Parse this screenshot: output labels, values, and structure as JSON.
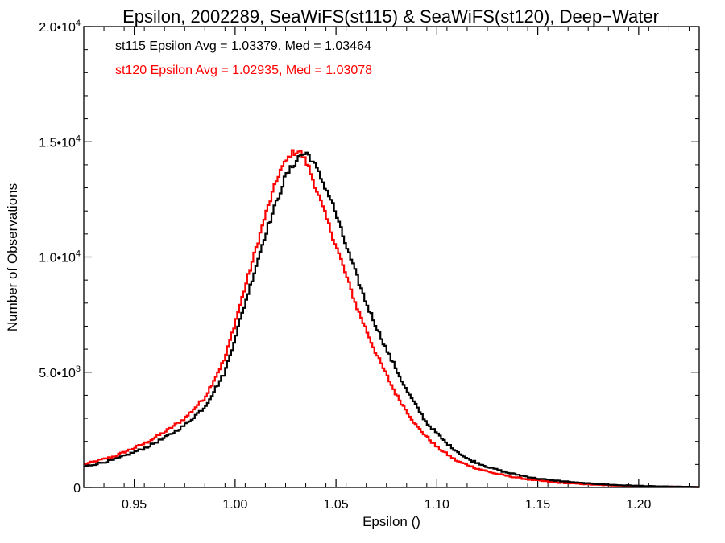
{
  "chart_data": {
    "type": "line",
    "title": "Epsilon, 2002289, SeaWiFS(st115) & SeaWiFS(st120), Deep−Water",
    "xlabel": "Epsilon ()",
    "ylabel": "Number of Observations",
    "xlim": [
      0.925,
      1.23
    ],
    "ylim": [
      0,
      20000
    ],
    "grid": false,
    "x_ticks": [
      {
        "value": 0.95,
        "label": "0.95"
      },
      {
        "value": 1.0,
        "label": "1.00"
      },
      {
        "value": 1.05,
        "label": "1.05"
      },
      {
        "value": 1.1,
        "label": "1.10"
      },
      {
        "value": 1.15,
        "label": "1.15"
      },
      {
        "value": 1.2,
        "label": "1.20"
      }
    ],
    "y_ticks": [
      {
        "value": 0,
        "label": "0",
        "exp": ""
      },
      {
        "value": 5000,
        "label": "5.0•10",
        "exp": "3"
      },
      {
        "value": 10000,
        "label": "1.0•10",
        "exp": "4"
      },
      {
        "value": 15000,
        "label": "1.5•10",
        "exp": "4"
      },
      {
        "value": 20000,
        "label": "2.0•10",
        "exp": "4"
      }
    ],
    "annotations": [
      {
        "text": "st115 Epsilon Avg = 1.03379, Med = 1.03464",
        "color": "#000000"
      },
      {
        "text": "st120 Epsilon Avg = 1.02935, Med = 1.03078",
        "color": "#ff0000"
      }
    ],
    "series": [
      {
        "color": "#000000",
        "points": [
          [
            0.925,
            900
          ],
          [
            0.94,
            1200
          ],
          [
            0.955,
            1700
          ],
          [
            0.965,
            2150
          ],
          [
            0.975,
            2700
          ],
          [
            0.985,
            3500
          ],
          [
            0.995,
            5000
          ],
          [
            1.005,
            8000
          ],
          [
            1.015,
            11000
          ],
          [
            1.025,
            13500
          ],
          [
            1.032,
            14400
          ],
          [
            1.036,
            14500
          ],
          [
            1.04,
            13900
          ],
          [
            1.048,
            12400
          ],
          [
            1.055,
            10500
          ],
          [
            1.065,
            8000
          ],
          [
            1.075,
            6000
          ],
          [
            1.085,
            4200
          ],
          [
            1.095,
            2800
          ],
          [
            1.105,
            1900
          ],
          [
            1.115,
            1250
          ],
          [
            1.125,
            900
          ],
          [
            1.135,
            640
          ],
          [
            1.15,
            380
          ],
          [
            1.17,
            200
          ],
          [
            1.19,
            100
          ],
          [
            1.21,
            45
          ],
          [
            1.23,
            20
          ]
        ]
      },
      {
        "color": "#ff0000",
        "points": [
          [
            0.925,
            1000
          ],
          [
            0.94,
            1350
          ],
          [
            0.955,
            1900
          ],
          [
            0.965,
            2400
          ],
          [
            0.975,
            3000
          ],
          [
            0.985,
            3900
          ],
          [
            0.995,
            5600
          ],
          [
            1.005,
            8700
          ],
          [
            1.015,
            11800
          ],
          [
            1.022,
            13700
          ],
          [
            1.028,
            14500
          ],
          [
            1.032,
            14600
          ],
          [
            1.036,
            14000
          ],
          [
            1.044,
            12000
          ],
          [
            1.052,
            10000
          ],
          [
            1.06,
            7900
          ],
          [
            1.07,
            5800
          ],
          [
            1.08,
            4000
          ],
          [
            1.09,
            2650
          ],
          [
            1.1,
            1750
          ],
          [
            1.11,
            1150
          ],
          [
            1.12,
            820
          ],
          [
            1.13,
            580
          ],
          [
            1.145,
            350
          ],
          [
            1.16,
            210
          ],
          [
            1.18,
            110
          ],
          [
            1.2,
            50
          ],
          [
            1.23,
            18
          ]
        ]
      }
    ]
  }
}
